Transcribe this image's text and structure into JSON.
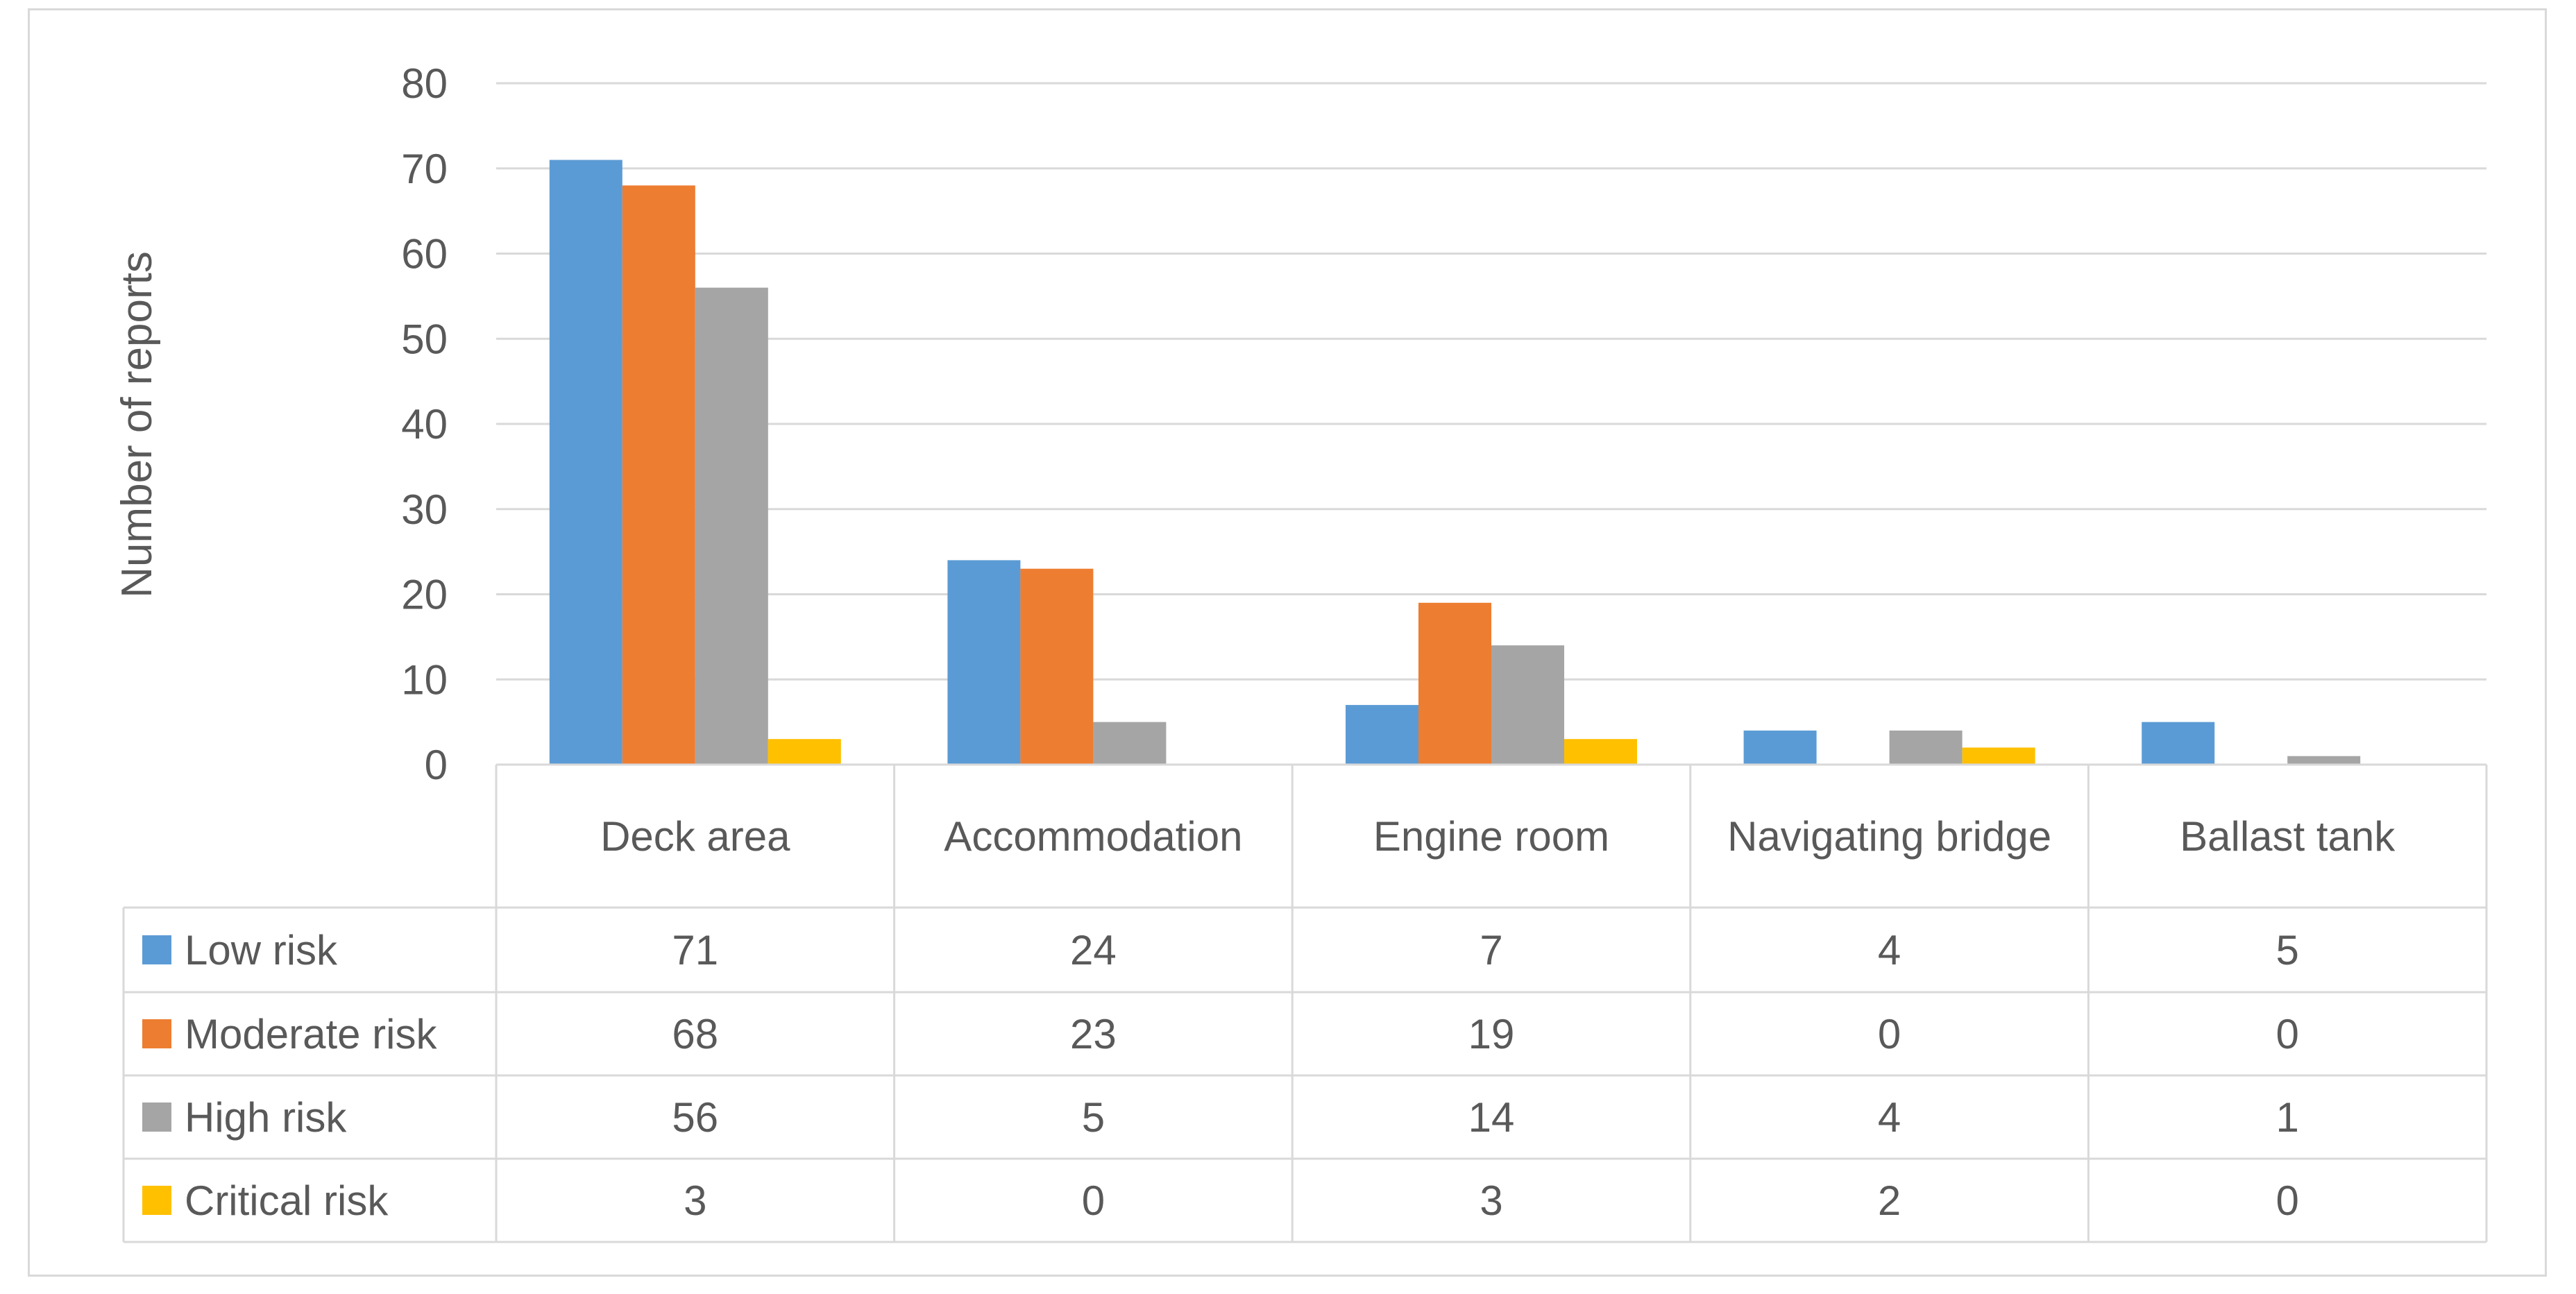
{
  "chart_data": {
    "type": "bar",
    "title": "",
    "xlabel": "",
    "ylabel": "Number of reports",
    "ylim": [
      0,
      80
    ],
    "yticks": [
      0,
      10,
      20,
      30,
      40,
      50,
      60,
      70,
      80
    ],
    "grid": true,
    "legend": "data-table-left",
    "categories": [
      "Deck area",
      "Accommodation",
      "Engine room",
      "Navigating bridge",
      "Ballast tank"
    ],
    "series": [
      {
        "name": "Low risk",
        "color": "#5b9bd5",
        "values": [
          71,
          24,
          7,
          4,
          5
        ]
      },
      {
        "name": "Moderate risk",
        "color": "#ed7d31",
        "values": [
          68,
          23,
          19,
          0,
          0
        ]
      },
      {
        "name": "High risk",
        "color": "#a5a5a5",
        "values": [
          56,
          5,
          14,
          4,
          1
        ]
      },
      {
        "name": "Critical risk",
        "color": "#ffc000",
        "values": [
          3,
          0,
          3,
          2,
          0
        ]
      }
    ]
  }
}
